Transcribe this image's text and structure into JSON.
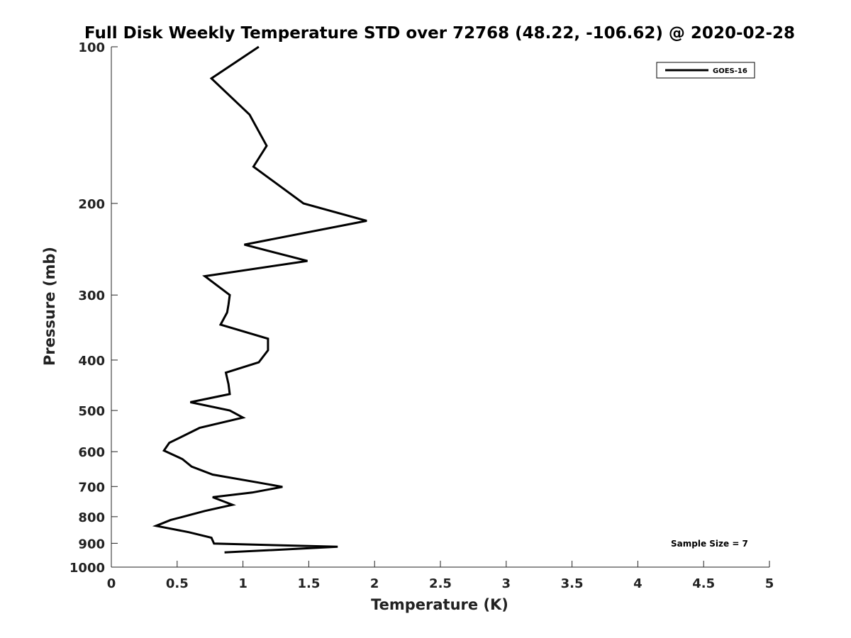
{
  "chart_data": {
    "type": "line",
    "title": "Full Disk Weekly Temperature STD over 72768 (48.22, -106.62) @ 2020-02-28",
    "xlabel": "Temperature (K)",
    "ylabel": "Pressure (mb)",
    "xlim": [
      0,
      5
    ],
    "ylim": [
      100,
      1000
    ],
    "y_scale": "log",
    "y_reversed": true,
    "x_ticks": [
      0,
      0.5,
      1,
      1.5,
      2,
      2.5,
      3,
      3.5,
      4,
      4.5,
      5
    ],
    "x_tick_labels": [
      "0",
      "0.5",
      "1",
      "1.5",
      "2",
      "2.5",
      "3",
      "3.5",
      "4",
      "4.5",
      "5"
    ],
    "y_ticks": [
      100,
      200,
      300,
      400,
      500,
      600,
      700,
      800,
      900,
      1000
    ],
    "y_tick_labels": [
      "100",
      "200",
      "300",
      "400",
      "500",
      "600",
      "700",
      "800",
      "900",
      "1000"
    ],
    "legend_position": "top-right",
    "grid": false,
    "annotation": "Sample Size = 7",
    "series": [
      {
        "name": "GOES-16",
        "color": "#000000",
        "x": [
          1.12,
          0.76,
          1.05,
          1.18,
          1.08,
          1.46,
          1.94,
          1.01,
          1.49,
          0.71,
          0.9,
          0.89,
          0.88,
          0.83,
          1.19,
          1.19,
          1.19,
          1.12,
          0.87,
          0.89,
          0.9,
          0.6,
          0.9,
          1.0,
          0.67,
          0.44,
          0.4,
          0.54,
          0.61,
          0.77,
          1.12,
          1.3,
          1.07,
          0.77,
          0.92,
          0.71,
          0.45,
          0.34,
          0.59,
          0.76,
          0.78,
          1.72,
          0.86
        ],
        "y": [
          100,
          115,
          135,
          155,
          170,
          200,
          216,
          240,
          258,
          276,
          300,
          313,
          324,
          342,
          364,
          375,
          383,
          404,
          423,
          445,
          465,
          482,
          500,
          516,
          540,
          577,
          597,
          620,
          641,
          664,
          688,
          701,
          719,
          734,
          759,
          780,
          812,
          833,
          857,
          878,
          901,
          914,
          937
        ]
      }
    ]
  }
}
